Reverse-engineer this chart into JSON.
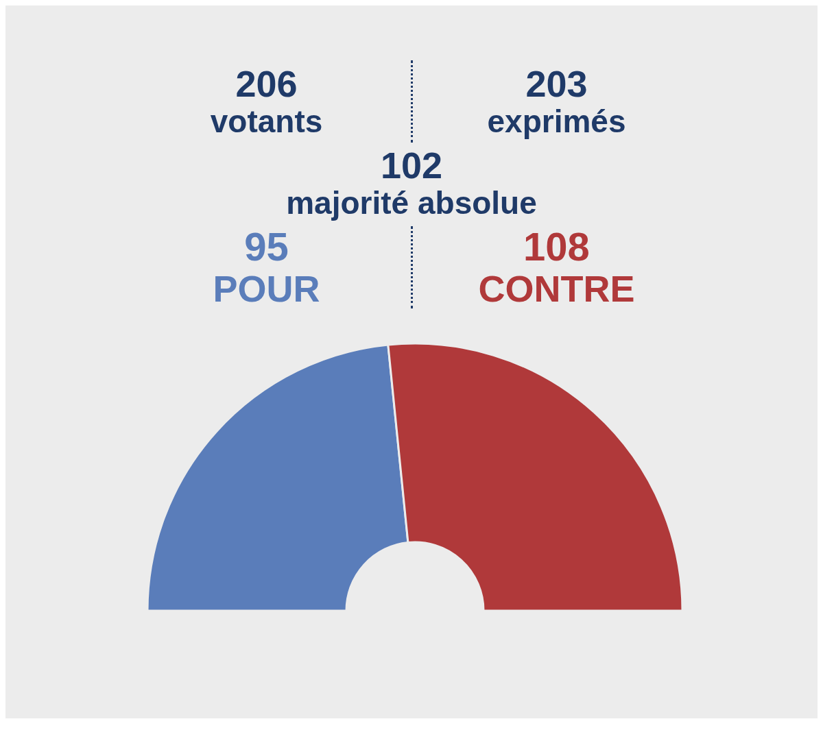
{
  "chart_data": {
    "type": "donut",
    "categories": [
      "POUR",
      "CONTRE"
    ],
    "values": [
      95,
      108
    ],
    "colors": [
      "#5a7dba",
      "#b0393a"
    ],
    "data_labels": true,
    "annotations": [
      "206 votants",
      "203 exprimés",
      "102 majorité absolue"
    ]
  }
}
